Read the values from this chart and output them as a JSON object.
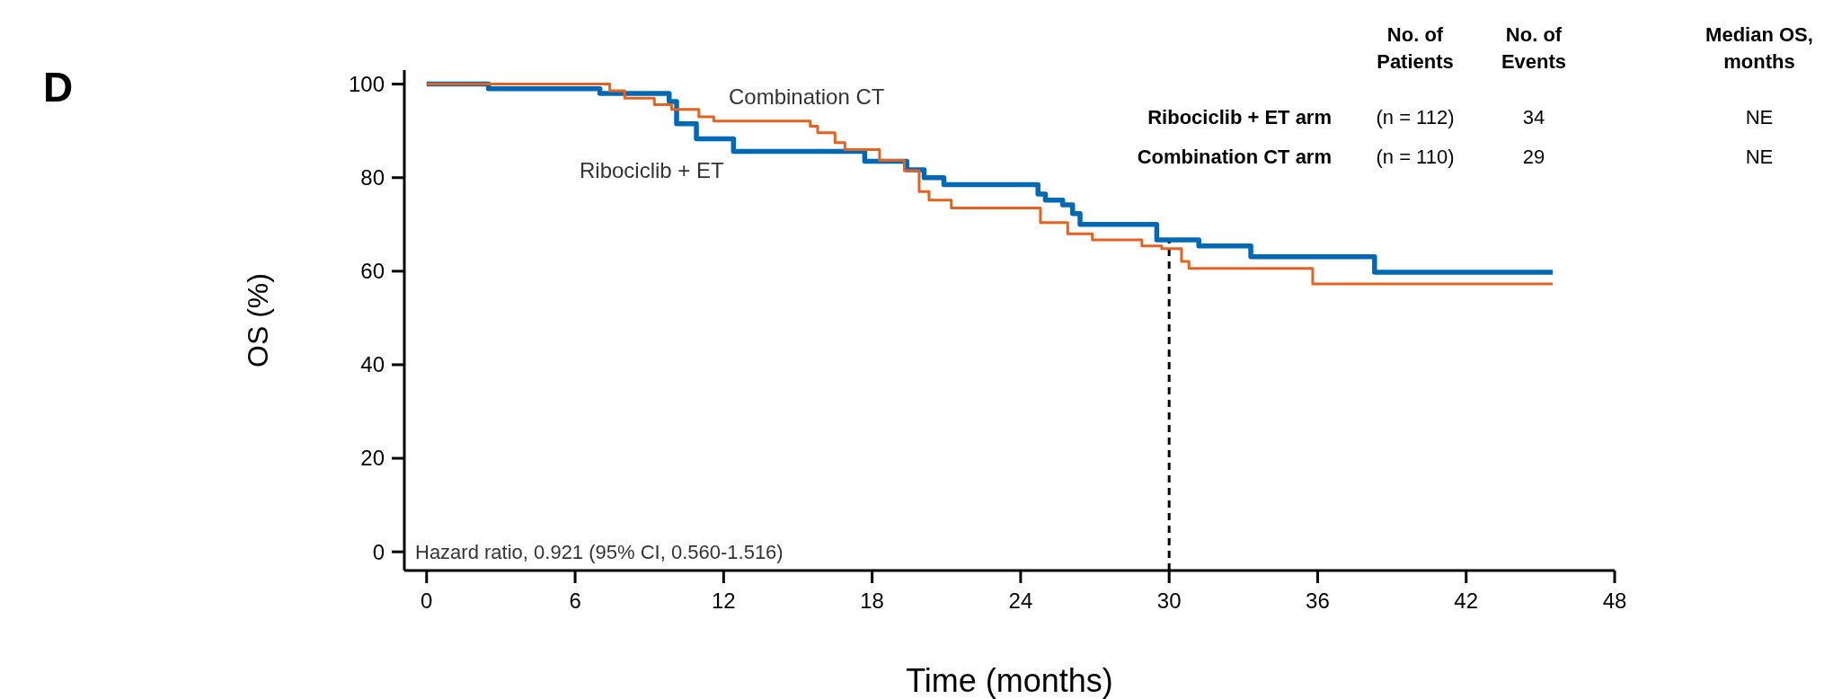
{
  "chart_data": {
    "type": "step",
    "title": "D",
    "xlabel": "Time (months)",
    "ylabel": "OS (%)",
    "xlim": [
      -0.9,
      48
    ],
    "xticks": [
      0,
      6,
      12,
      18,
      24,
      30,
      36,
      42,
      48
    ],
    "ylim": [
      -4,
      103
    ],
    "yticks": [
      0,
      20,
      40,
      60,
      80,
      100
    ],
    "grid": false,
    "series": [
      {
        "name": "Ribociclib + ET",
        "color": "#0068b5",
        "x": [
          0,
          2.5,
          7,
          9.8,
          10.1,
          10.9,
          12.4,
          17.7,
          19.4,
          20.1,
          20.9,
          24.7,
          25,
          25.7,
          26.1,
          26.4,
          29.5,
          31.2,
          33.3,
          38.3,
          45.5
        ],
        "values": [
          100,
          99,
          98,
          96.3,
          91.5,
          88.3,
          85.6,
          83.5,
          81.7,
          80,
          78.5,
          76.5,
          75.2,
          74.2,
          72.3,
          70,
          66.7,
          65.4,
          63.1,
          59.8,
          59.8
        ]
      },
      {
        "name": "Combination CT",
        "color": "#e5621e",
        "x": [
          0,
          7.4,
          8,
          9.2,
          9.9,
          11,
          11.6,
          15.5,
          15.8,
          16.5,
          16.9,
          18.3,
          19.3,
          19.9,
          20.3,
          21.2,
          24.8,
          25.9,
          26.9,
          28.9,
          29.7,
          30.5,
          30.8,
          35.8,
          45.5
        ],
        "values": [
          100,
          98.6,
          97,
          95.6,
          94.6,
          93,
          92.1,
          91,
          89.6,
          87.5,
          86,
          83.7,
          81.5,
          77,
          75.2,
          73.5,
          70.4,
          68,
          66.7,
          65.4,
          64.8,
          62.1,
          60.6,
          57.3,
          57.3
        ]
      }
    ],
    "ref_lines": [
      {
        "axis": "x",
        "value": 30,
        "color": "#000000",
        "line_style": "dashed"
      }
    ],
    "annotations": [
      "Hazard ratio, 0.921 (95% CI, 0.560-1.516)",
      "No. of Patients",
      "No. of Events",
      "Median OS, months",
      "Ribociclib + ET arm",
      "(n = 112)",
      "34",
      "NE",
      "Combination CT arm",
      "(n = 110)",
      "29",
      "NE"
    ]
  }
}
